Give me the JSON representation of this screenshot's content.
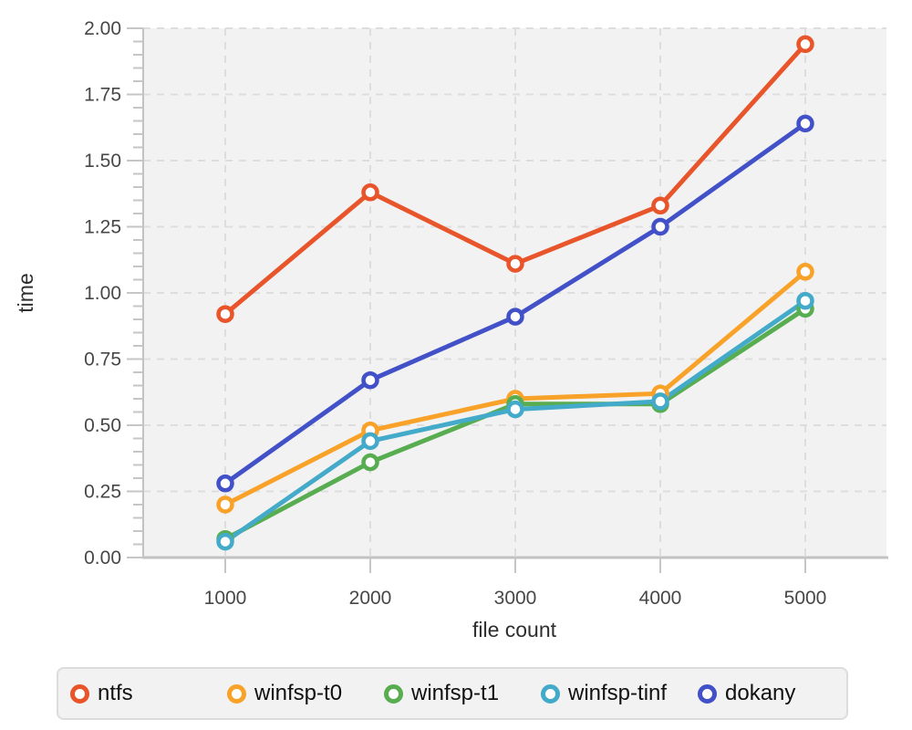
{
  "chart_data": {
    "type": "line",
    "title": "",
    "xlabel": "file count",
    "ylabel": "time",
    "x": [
      1000,
      2000,
      3000,
      4000,
      5000
    ],
    "x_tick_labels": [
      "1000",
      "2000",
      "3000",
      "4000",
      "5000"
    ],
    "series": [
      {
        "name": "ntfs",
        "color": "#e8552b",
        "values": [
          0.92,
          1.38,
          1.11,
          1.33,
          1.94
        ]
      },
      {
        "name": "winfsp-t0",
        "color": "#f9a229",
        "values": [
          0.2,
          0.48,
          0.6,
          0.62,
          1.08
        ]
      },
      {
        "name": "winfsp-t1",
        "color": "#57ad50",
        "values": [
          0.07,
          0.36,
          0.58,
          0.58,
          0.94
        ]
      },
      {
        "name": "winfsp-tinf",
        "color": "#43abc9",
        "values": [
          0.06,
          0.44,
          0.56,
          0.59,
          0.97
        ]
      },
      {
        "name": "dokany",
        "color": "#4351c8",
        "values": [
          0.28,
          0.67,
          0.91,
          1.25,
          1.64
        ]
      }
    ],
    "ylim": [
      0,
      2.0
    ],
    "y_major_step": 0.25,
    "y_minor_step": 0.05,
    "y_tick_labels": [
      "0.00",
      "0.25",
      "0.50",
      "0.75",
      "1.00",
      "1.25",
      "1.50",
      "1.75",
      "2.00"
    ],
    "grid": true,
    "marker": "open-circle",
    "legend_position": "bottom",
    "colors": {
      "plot_background": "#f2f2f2",
      "gridline": "#dddddd",
      "axis_line": "#c2c2c2",
      "tick": "#c6c6c6",
      "tick_label": "#474747",
      "axis_title": "#2e2e2e",
      "legend_background": "#f2f2f2",
      "legend_border": "#dcdcdc",
      "marker_fill": "#ffffff"
    }
  },
  "legend": {
    "items": [
      "ntfs",
      "winfsp-t0",
      "winfsp-t1",
      "winfsp-tinf",
      "dokany"
    ]
  }
}
